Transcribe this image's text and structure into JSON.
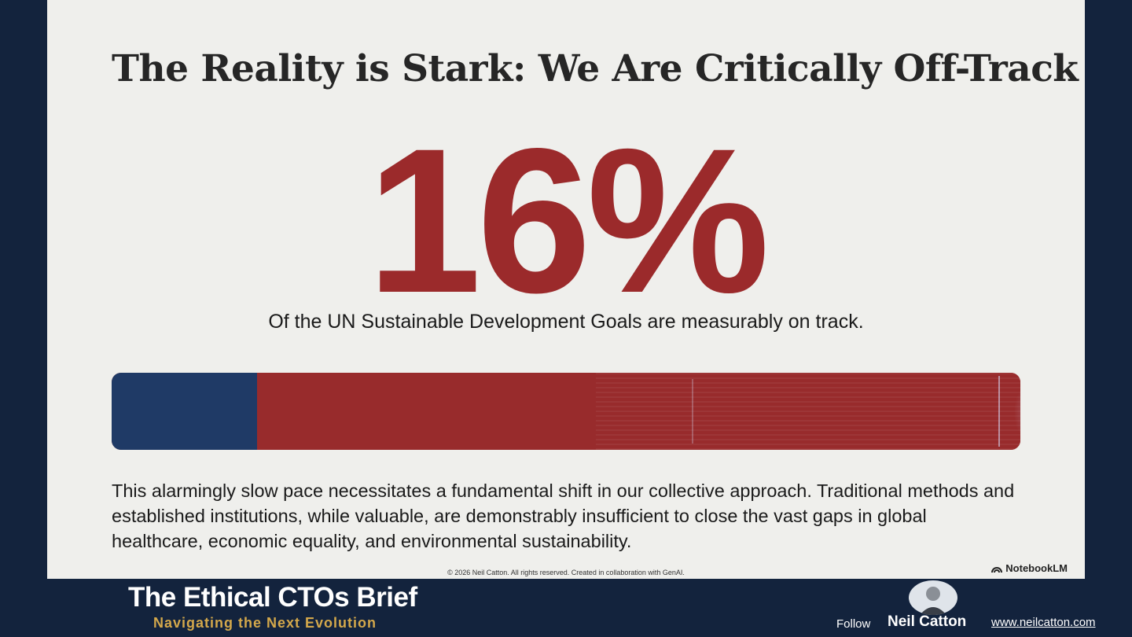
{
  "slide": {
    "title": "The Reality is Stark: We Are Critically Off-Track",
    "stat_value": "16%",
    "stat_fraction": 0.16,
    "stat_caption": "Of the UN Sustainable Development Goals are measurably on track.",
    "body": "This alarmingly slow pace necessitates a fundamental shift in our collective approach. Traditional methods and established institutions, while valuable, are demonstrably insufficient to close the vast gaps in global healthcare, economic equality, and environmental sustainability.",
    "copyright": "© 2026 Neil Catton. All rights reserved. Created in collaboration with GenAI.",
    "watermark": "NotebookLM",
    "colors": {
      "accent_red": "#9b2a2b",
      "fill_blue": "#1f3a66",
      "frame_navy": "#13233d"
    }
  },
  "footer": {
    "brand_title": "The Ethical CTOs Brief",
    "brand_subtitle": "Navigating the Next Evolution",
    "follow_label": "Follow",
    "author_name": "Neil Catton",
    "website": "www.neilcatton.com",
    "subtitle_color": "#d4a84b"
  }
}
